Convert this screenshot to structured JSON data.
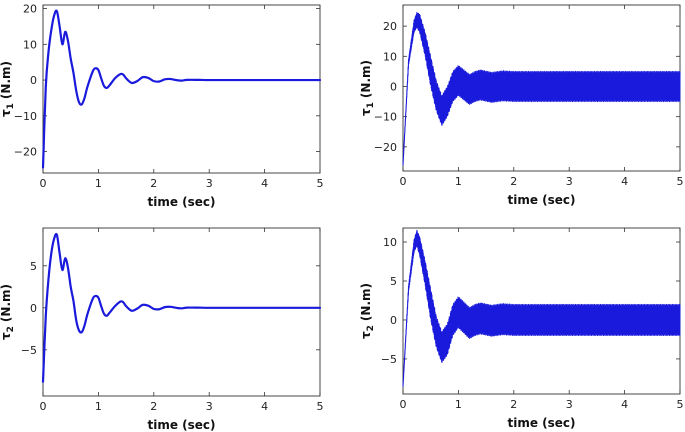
{
  "chart_data": [
    {
      "type": "line",
      "xlabel": "time (sec)",
      "ylabel_symbol": "τ",
      "ylabel_sub": "1",
      "ylabel_unit": "(N.m)",
      "xlim": [
        0,
        5
      ],
      "ylim": [
        -26,
        21
      ],
      "xticks": [
        0,
        1,
        2,
        3,
        4,
        5
      ],
      "yticks": [
        -20,
        -10,
        0,
        10,
        20
      ],
      "color": "#1a1adc",
      "series": [
        {
          "x": [
            0,
            0.05,
            0.1,
            0.15,
            0.2,
            0.25,
            0.3,
            0.35,
            0.4,
            0.45,
            0.5,
            0.55,
            0.6,
            0.65,
            0.7,
            0.75,
            0.8,
            0.9,
            0.95,
            1.0,
            1.05,
            1.1,
            1.15,
            1.2,
            1.3,
            1.4,
            1.45,
            1.5,
            1.6,
            1.7,
            1.8,
            1.9,
            2.0,
            2.1,
            2.2,
            2.3,
            2.4,
            2.5,
            2.6,
            2.8,
            3.0,
            3.5,
            4.0,
            4.5,
            5.0
          ],
          "y": [
            -24.5,
            -2,
            8,
            14,
            18,
            19.3,
            15,
            10,
            13.5,
            11,
            6,
            2,
            -3,
            -6.2,
            -6.8,
            -5,
            -2,
            2.5,
            3.3,
            2.8,
            0.5,
            -1.6,
            -2.2,
            -1.5,
            0.5,
            1.7,
            1.5,
            0.5,
            -0.8,
            -0.3,
            0.8,
            0.6,
            -0.3,
            -0.4,
            0.2,
            0.3,
            0,
            -0.15,
            0.05,
            0.05,
            0,
            0,
            0,
            0,
            0
          ]
        }
      ]
    },
    {
      "type": "line",
      "xlabel": "time (sec)",
      "ylabel_symbol": "τ",
      "ylabel_sub": "1",
      "ylabel_unit": "(N.m)",
      "xlim": [
        0,
        5
      ],
      "ylim": [
        -28,
        27
      ],
      "xticks": [
        0,
        1,
        2,
        3,
        4,
        5
      ],
      "yticks": [
        -20,
        -10,
        0,
        10,
        20
      ],
      "color": "#1a1adc",
      "series": [
        {
          "x": [
            0,
            0.1,
            0.2,
            0.25,
            0.3,
            0.4,
            0.5,
            0.6,
            0.7,
            0.8,
            0.9,
            1.0,
            1.1,
            1.2,
            1.3,
            1.4,
            1.6,
            1.8,
            2.0,
            3.0,
            4.0,
            5.0
          ],
          "y": [
            -26,
            8,
            20,
            22,
            21,
            14,
            5,
            -3,
            -8,
            -5,
            0,
            2,
            0.5,
            -1,
            0,
            0.5,
            -0.3,
            0.2,
            0,
            0,
            0,
            0
          ],
          "band": 5
        }
      ]
    },
    {
      "type": "line",
      "xlabel": "time (sec)",
      "ylabel_symbol": "τ",
      "ylabel_sub": "2",
      "ylabel_unit": "(N.m)",
      "xlim": [
        0,
        5
      ],
      "ylim": [
        -10.5,
        9.5
      ],
      "xticks": [
        0,
        1,
        2,
        3,
        4,
        5
      ],
      "yticks": [
        -5,
        0,
        5
      ],
      "color": "#1a1adc",
      "series": [
        {
          "x": [
            0,
            0.05,
            0.1,
            0.15,
            0.2,
            0.25,
            0.3,
            0.35,
            0.4,
            0.45,
            0.5,
            0.55,
            0.6,
            0.65,
            0.7,
            0.75,
            0.8,
            0.9,
            0.95,
            1.0,
            1.05,
            1.1,
            1.15,
            1.2,
            1.3,
            1.4,
            1.45,
            1.5,
            1.6,
            1.7,
            1.8,
            1.9,
            2.0,
            2.1,
            2.2,
            2.3,
            2.4,
            2.5,
            2.6,
            2.8,
            3.0,
            3.5,
            4.0,
            4.5,
            5.0
          ],
          "y": [
            -8.8,
            -1,
            3.5,
            6.5,
            8.2,
            8.7,
            6.5,
            4.5,
            5.9,
            4.8,
            2.5,
            0.8,
            -1.5,
            -2.7,
            -2.9,
            -2.1,
            -0.8,
            1.1,
            1.4,
            1.2,
            0.2,
            -0.7,
            -0.95,
            -0.6,
            0.2,
            0.75,
            0.65,
            0.2,
            -0.35,
            -0.1,
            0.35,
            0.25,
            -0.13,
            -0.17,
            0.08,
            0.12,
            0,
            -0.06,
            0.02,
            0.02,
            0,
            0,
            0,
            0,
            0
          ]
        }
      ]
    },
    {
      "type": "line",
      "xlabel": "time (sec)",
      "ylabel_symbol": "τ",
      "ylabel_sub": "2",
      "ylabel_unit": "(N.m)",
      "xlim": [
        0,
        5
      ],
      "ylim": [
        -9.5,
        11.8
      ],
      "xticks": [
        0,
        1,
        2,
        3,
        4,
        5
      ],
      "yticks": [
        -5,
        0,
        5,
        10
      ],
      "color": "#1a1adc",
      "series": [
        {
          "x": [
            0,
            0.1,
            0.2,
            0.25,
            0.3,
            0.4,
            0.5,
            0.6,
            0.7,
            0.8,
            0.9,
            1.0,
            1.1,
            1.2,
            1.3,
            1.4,
            1.6,
            1.8,
            2.0,
            3.0,
            4.0,
            5.0
          ],
          "y": [
            -8.5,
            4,
            9.5,
            10.5,
            9.5,
            6,
            2,
            -1.5,
            -3.5,
            -2.5,
            0,
            1,
            0.3,
            -0.4,
            0,
            0.2,
            -0.1,
            0.1,
            0,
            0,
            0,
            0
          ],
          "band": 2
        }
      ]
    }
  ]
}
